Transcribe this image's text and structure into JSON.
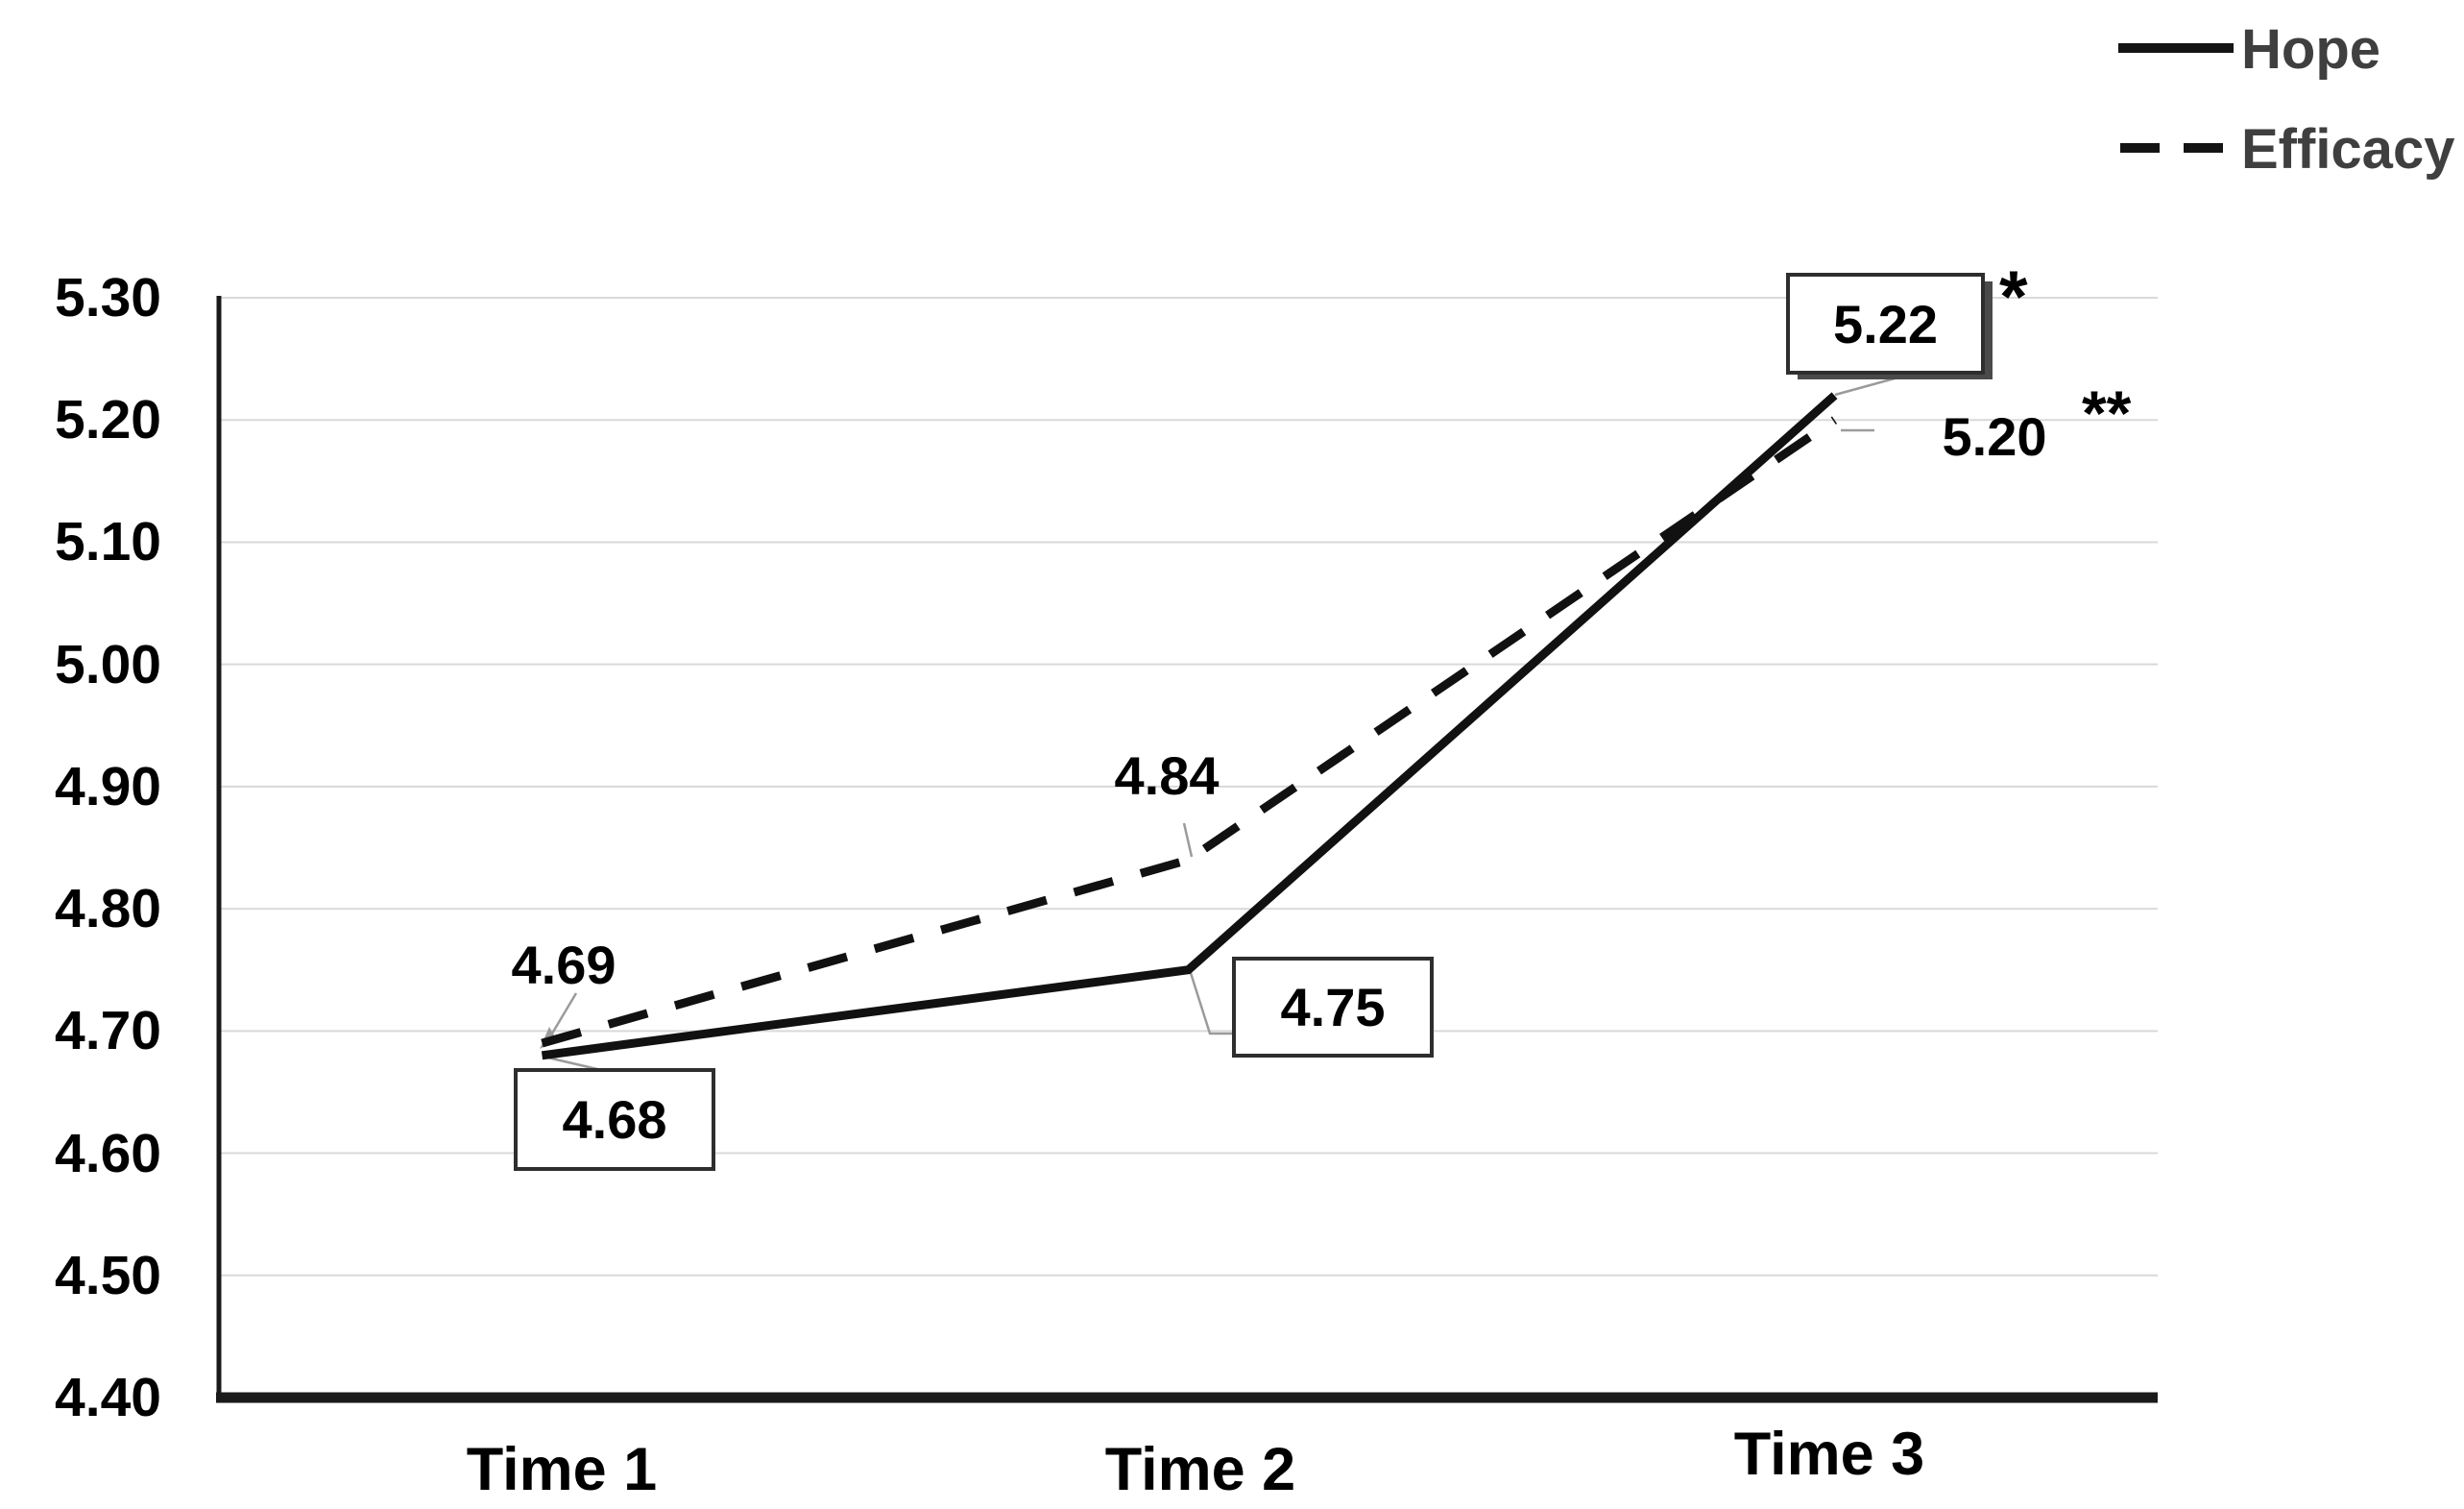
{
  "chart_data": {
    "type": "line",
    "categories": [
      "Time 1",
      "Time 2",
      "Time 3"
    ],
    "series": [
      {
        "name": "Hope",
        "line_style": "solid",
        "values": [
          4.68,
          4.75,
          5.22
        ]
      },
      {
        "name": "Efficacy",
        "line_style": "dashed",
        "values": [
          4.69,
          4.84,
          5.2
        ]
      }
    ],
    "title": "",
    "xlabel": "",
    "ylabel": "",
    "ylim": [
      4.4,
      5.3
    ],
    "ytick_step": 0.1,
    "ytick_labels": [
      "5.30",
      "5.20",
      "5.10",
      "5.00",
      "4.90",
      "4.80",
      "4.70",
      "4.60",
      "4.50",
      "4.40"
    ],
    "grid": "horizontal",
    "legend_position": "top-right",
    "annotations": [
      {
        "series": "Hope",
        "point": "Time 1",
        "text": "4.68",
        "boxed": true,
        "significance": ""
      },
      {
        "series": "Efficacy",
        "point": "Time 1",
        "text": "4.69",
        "boxed": false,
        "significance": ""
      },
      {
        "series": "Hope",
        "point": "Time 2",
        "text": "4.75",
        "boxed": true,
        "significance": ""
      },
      {
        "series": "Efficacy",
        "point": "Time 2",
        "text": "4.84",
        "boxed": false,
        "significance": ""
      },
      {
        "series": "Hope",
        "point": "Time 3",
        "text": "5.22",
        "boxed": true,
        "significance": "*"
      },
      {
        "series": "Efficacy",
        "point": "Time 3",
        "text": "5.20",
        "boxed": false,
        "significance": "**"
      }
    ],
    "colors": {
      "line": "#111111",
      "grid": "#d9d9d9",
      "axis": "#1a1a1a",
      "legend_text": "#3f3f3f",
      "leader": "#9b9b9b"
    }
  },
  "legend": {
    "items": [
      {
        "label": "Hope",
        "style": "solid"
      },
      {
        "label": "Efficacy",
        "style": "dashed"
      }
    ]
  }
}
